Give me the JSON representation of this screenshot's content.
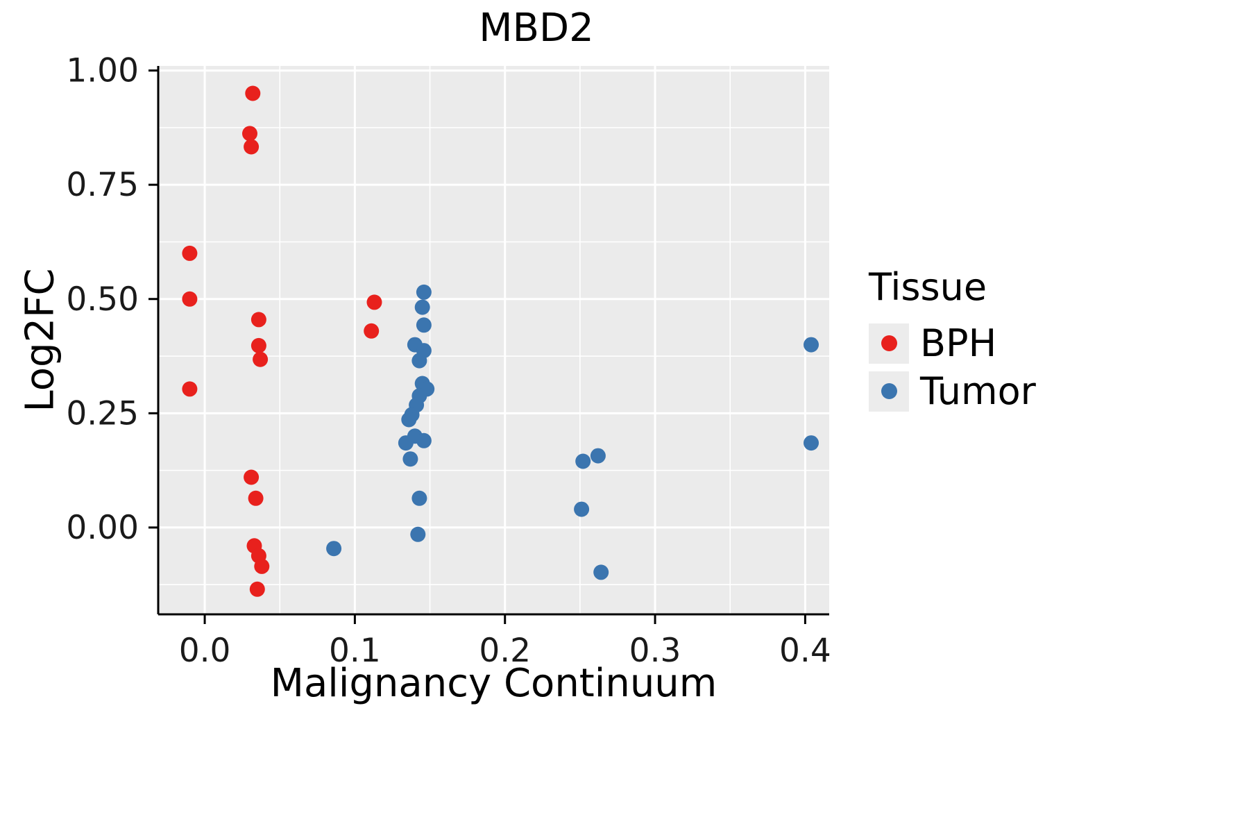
{
  "chart_data": {
    "type": "scatter",
    "title": "MBD2",
    "xlabel": "Malignancy Continuum",
    "ylabel": "Log2FC",
    "legend_title": "Tissue",
    "legend_position": "right",
    "grid": true,
    "panel_bg": "#EBEBEB",
    "grid_color": "#FFFFFF",
    "axis_color": "#000000",
    "xlim": [
      -0.031,
      0.416
    ],
    "ylim": [
      -0.19,
      1.01
    ],
    "xticks": [
      0.0,
      0.1,
      0.2,
      0.3,
      0.4
    ],
    "xtick_labels": [
      "0.0",
      "0.1",
      "0.2",
      "0.3",
      "0.4"
    ],
    "yticks": [
      0.0,
      0.25,
      0.5,
      0.75,
      1.0
    ],
    "ytick_labels": [
      "0.00",
      "0.25",
      "0.50",
      "0.75",
      "1.00"
    ],
    "x_minor": [
      0.05,
      0.15,
      0.25,
      0.35
    ],
    "y_minor": [
      -0.125,
      0.125,
      0.375,
      0.625,
      0.875
    ],
    "point_radius": 11,
    "series": [
      {
        "name": "BPH",
        "color": "#E8211D",
        "points": [
          [
            -0.01,
            0.6
          ],
          [
            -0.01,
            0.5
          ],
          [
            -0.01,
            0.303
          ],
          [
            0.032,
            0.95
          ],
          [
            0.03,
            0.862
          ],
          [
            0.031,
            0.833
          ],
          [
            0.036,
            0.455
          ],
          [
            0.036,
            0.398
          ],
          [
            0.037,
            0.368
          ],
          [
            0.031,
            0.11
          ],
          [
            0.034,
            0.064
          ],
          [
            0.033,
            -0.04
          ],
          [
            0.036,
            -0.062
          ],
          [
            0.038,
            -0.085
          ],
          [
            0.035,
            -0.135
          ],
          [
            0.113,
            0.493
          ],
          [
            0.111,
            0.43
          ]
        ]
      },
      {
        "name": "Tumor",
        "color": "#3B75AF",
        "points": [
          [
            0.086,
            -0.046
          ],
          [
            0.146,
            0.515
          ],
          [
            0.145,
            0.482
          ],
          [
            0.146,
            0.443
          ],
          [
            0.14,
            0.4
          ],
          [
            0.146,
            0.387
          ],
          [
            0.143,
            0.365
          ],
          [
            0.145,
            0.315
          ],
          [
            0.148,
            0.303
          ],
          [
            0.143,
            0.288
          ],
          [
            0.141,
            0.268
          ],
          [
            0.138,
            0.247
          ],
          [
            0.136,
            0.236
          ],
          [
            0.14,
            0.2
          ],
          [
            0.146,
            0.19
          ],
          [
            0.134,
            0.185
          ],
          [
            0.137,
            0.15
          ],
          [
            0.143,
            0.064
          ],
          [
            0.142,
            -0.015
          ],
          [
            0.252,
            0.145
          ],
          [
            0.262,
            0.157
          ],
          [
            0.251,
            0.04
          ],
          [
            0.264,
            -0.098
          ],
          [
            0.404,
            0.4
          ],
          [
            0.404,
            0.185
          ]
        ]
      }
    ]
  }
}
